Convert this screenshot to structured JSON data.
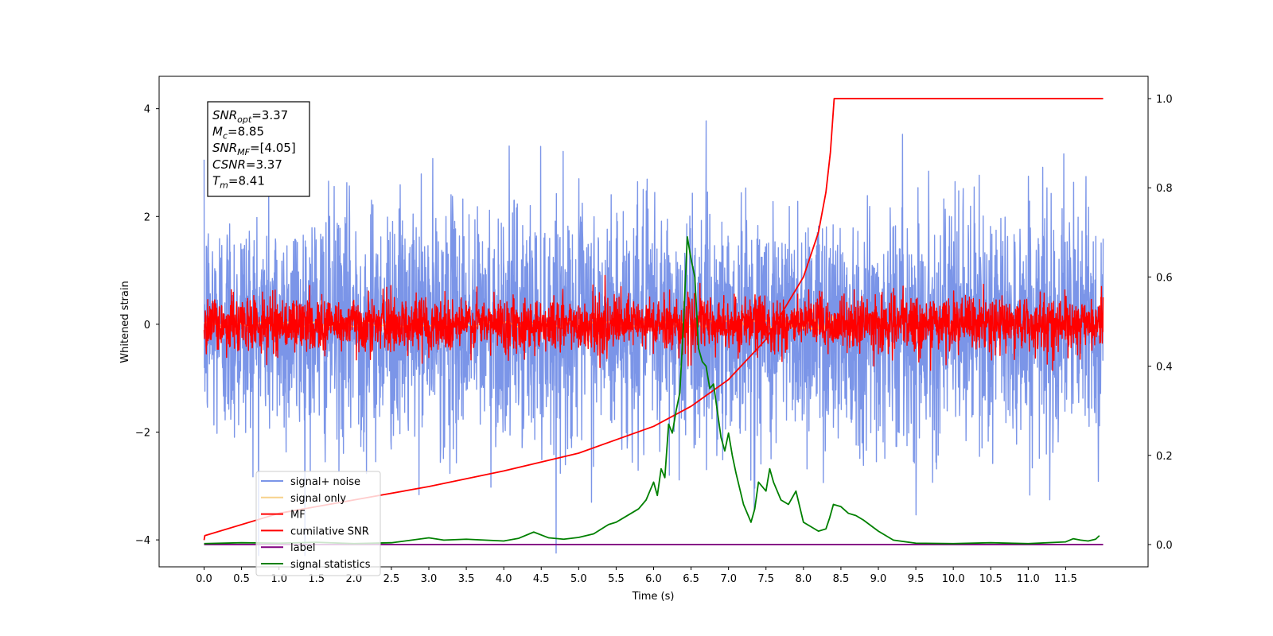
{
  "chart_data": {
    "type": "line",
    "xlabel": "Time (s)",
    "ylabel_left": "Whitened strain",
    "ylabel_right": "",
    "xlim": [
      -0.6,
      12.6
    ],
    "ylim_left": [
      -4.5,
      4.6
    ],
    "ylim_right": [
      -0.05,
      1.05
    ],
    "x_ticks": [
      "0.0",
      "0.5",
      "1.0",
      "1.5",
      "2.0",
      "2.5",
      "3.0",
      "3.5",
      "4.0",
      "4.5",
      "5.0",
      "5.5",
      "6.0",
      "6.5",
      "7.0",
      "7.5",
      "8.0",
      "8.5",
      "9.0",
      "9.5",
      "10.0",
      "10.5",
      "11.0",
      "11.5"
    ],
    "x_tick_values": [
      0.0,
      0.5,
      1.0,
      1.5,
      2.0,
      2.5,
      3.0,
      3.5,
      4.0,
      4.5,
      5.0,
      5.5,
      6.0,
      6.5,
      7.0,
      7.5,
      8.0,
      8.5,
      9.0,
      9.5,
      10.0,
      10.5,
      11.0,
      11.5
    ],
    "y_ticks_left": [
      "4",
      "2",
      "0",
      "−2",
      "−4"
    ],
    "y_tick_values_left": [
      4,
      2,
      0,
      -2,
      -4
    ],
    "y_ticks_right": [
      "1.0",
      "0.8",
      "0.6",
      "0.4",
      "0.2",
      "0.0"
    ],
    "y_tick_values_right": [
      1.0,
      0.8,
      0.6,
      0.4,
      0.2,
      0.0
    ],
    "grid": false,
    "legend_position": "lower-left",
    "series": [
      {
        "name": "signal+ noise",
        "color": "#7b95e8",
        "axis": "left",
        "style": "noise",
        "x_range": [
          0.0,
          12.0
        ],
        "amplitude_std": 1.1
      },
      {
        "name": "signal only",
        "color": "#f7d28b",
        "axis": "left",
        "style": "chirp",
        "x_range": [
          0.0,
          8.41
        ],
        "amplitude": 0.25
      },
      {
        "name": "MF",
        "color": "#ff0000",
        "axis": "left",
        "style": "noise",
        "x_range": [
          0.0,
          12.0
        ],
        "amplitude_std": 0.25
      },
      {
        "name": "cumilative SNR",
        "color": "#ff0000",
        "axis": "right",
        "x": [
          0.0,
          0.01,
          1.0,
          2.0,
          3.0,
          4.0,
          5.0,
          6.0,
          6.5,
          7.0,
          7.5,
          8.0,
          8.2,
          8.3,
          8.36,
          8.41,
          12.0
        ],
        "values": [
          0.01,
          0.02,
          0.07,
          0.1,
          0.13,
          0.165,
          0.205,
          0.265,
          0.31,
          0.37,
          0.46,
          0.6,
          0.7,
          0.79,
          0.88,
          1.0,
          1.0
        ]
      },
      {
        "name": "label",
        "color": "#800080",
        "axis": "right",
        "x": [
          0.0,
          12.0
        ],
        "values": [
          0.0,
          0.0
        ]
      },
      {
        "name": "signal statistics",
        "color": "#008000",
        "axis": "right",
        "x": [
          0.0,
          0.5,
          1.0,
          1.5,
          2.0,
          2.5,
          3.0,
          3.2,
          3.5,
          4.0,
          4.2,
          4.4,
          4.6,
          4.8,
          5.0,
          5.2,
          5.4,
          5.5,
          5.6,
          5.8,
          5.9,
          6.0,
          6.05,
          6.1,
          6.15,
          6.2,
          6.25,
          6.3,
          6.35,
          6.4,
          6.45,
          6.5,
          6.55,
          6.6,
          6.65,
          6.7,
          6.75,
          6.8,
          6.85,
          6.9,
          6.95,
          7.0,
          7.05,
          7.1,
          7.2,
          7.3,
          7.35,
          7.4,
          7.5,
          7.55,
          7.6,
          7.7,
          7.8,
          7.9,
          8.0,
          8.1,
          8.2,
          8.3,
          8.35,
          8.4,
          8.5,
          8.6,
          8.7,
          8.8,
          9.0,
          9.2,
          9.5,
          10.0,
          10.5,
          11.0,
          11.5,
          11.6,
          11.7,
          11.8,
          11.9,
          11.95
        ],
        "values": [
          0.002,
          0.004,
          0.003,
          0.005,
          0.002,
          0.004,
          0.015,
          0.01,
          0.012,
          0.008,
          0.014,
          0.028,
          0.015,
          0.012,
          0.016,
          0.024,
          0.045,
          0.05,
          0.06,
          0.08,
          0.1,
          0.14,
          0.11,
          0.17,
          0.15,
          0.27,
          0.25,
          0.3,
          0.34,
          0.5,
          0.69,
          0.64,
          0.6,
          0.44,
          0.41,
          0.4,
          0.35,
          0.36,
          0.3,
          0.24,
          0.21,
          0.25,
          0.2,
          0.16,
          0.09,
          0.05,
          0.08,
          0.14,
          0.12,
          0.17,
          0.14,
          0.1,
          0.09,
          0.12,
          0.05,
          0.04,
          0.03,
          0.035,
          0.06,
          0.09,
          0.085,
          0.07,
          0.065,
          0.055,
          0.03,
          0.01,
          0.003,
          0.002,
          0.004,
          0.002,
          0.006,
          0.013,
          0.01,
          0.008,
          0.012,
          0.02
        ]
      }
    ],
    "annotation_lines": [
      {
        "label": "SNR",
        "sub": "opt",
        "value": "=3.37"
      },
      {
        "label": "M",
        "sub": "c",
        "value": "=8.85"
      },
      {
        "label": "SNR",
        "sub": "MF",
        "value": "=[4.05]"
      },
      {
        "label": "CSNR",
        "sub": "",
        "value": "=3.37"
      },
      {
        "label": "T",
        "sub": "m",
        "value": "=8.41"
      }
    ]
  }
}
